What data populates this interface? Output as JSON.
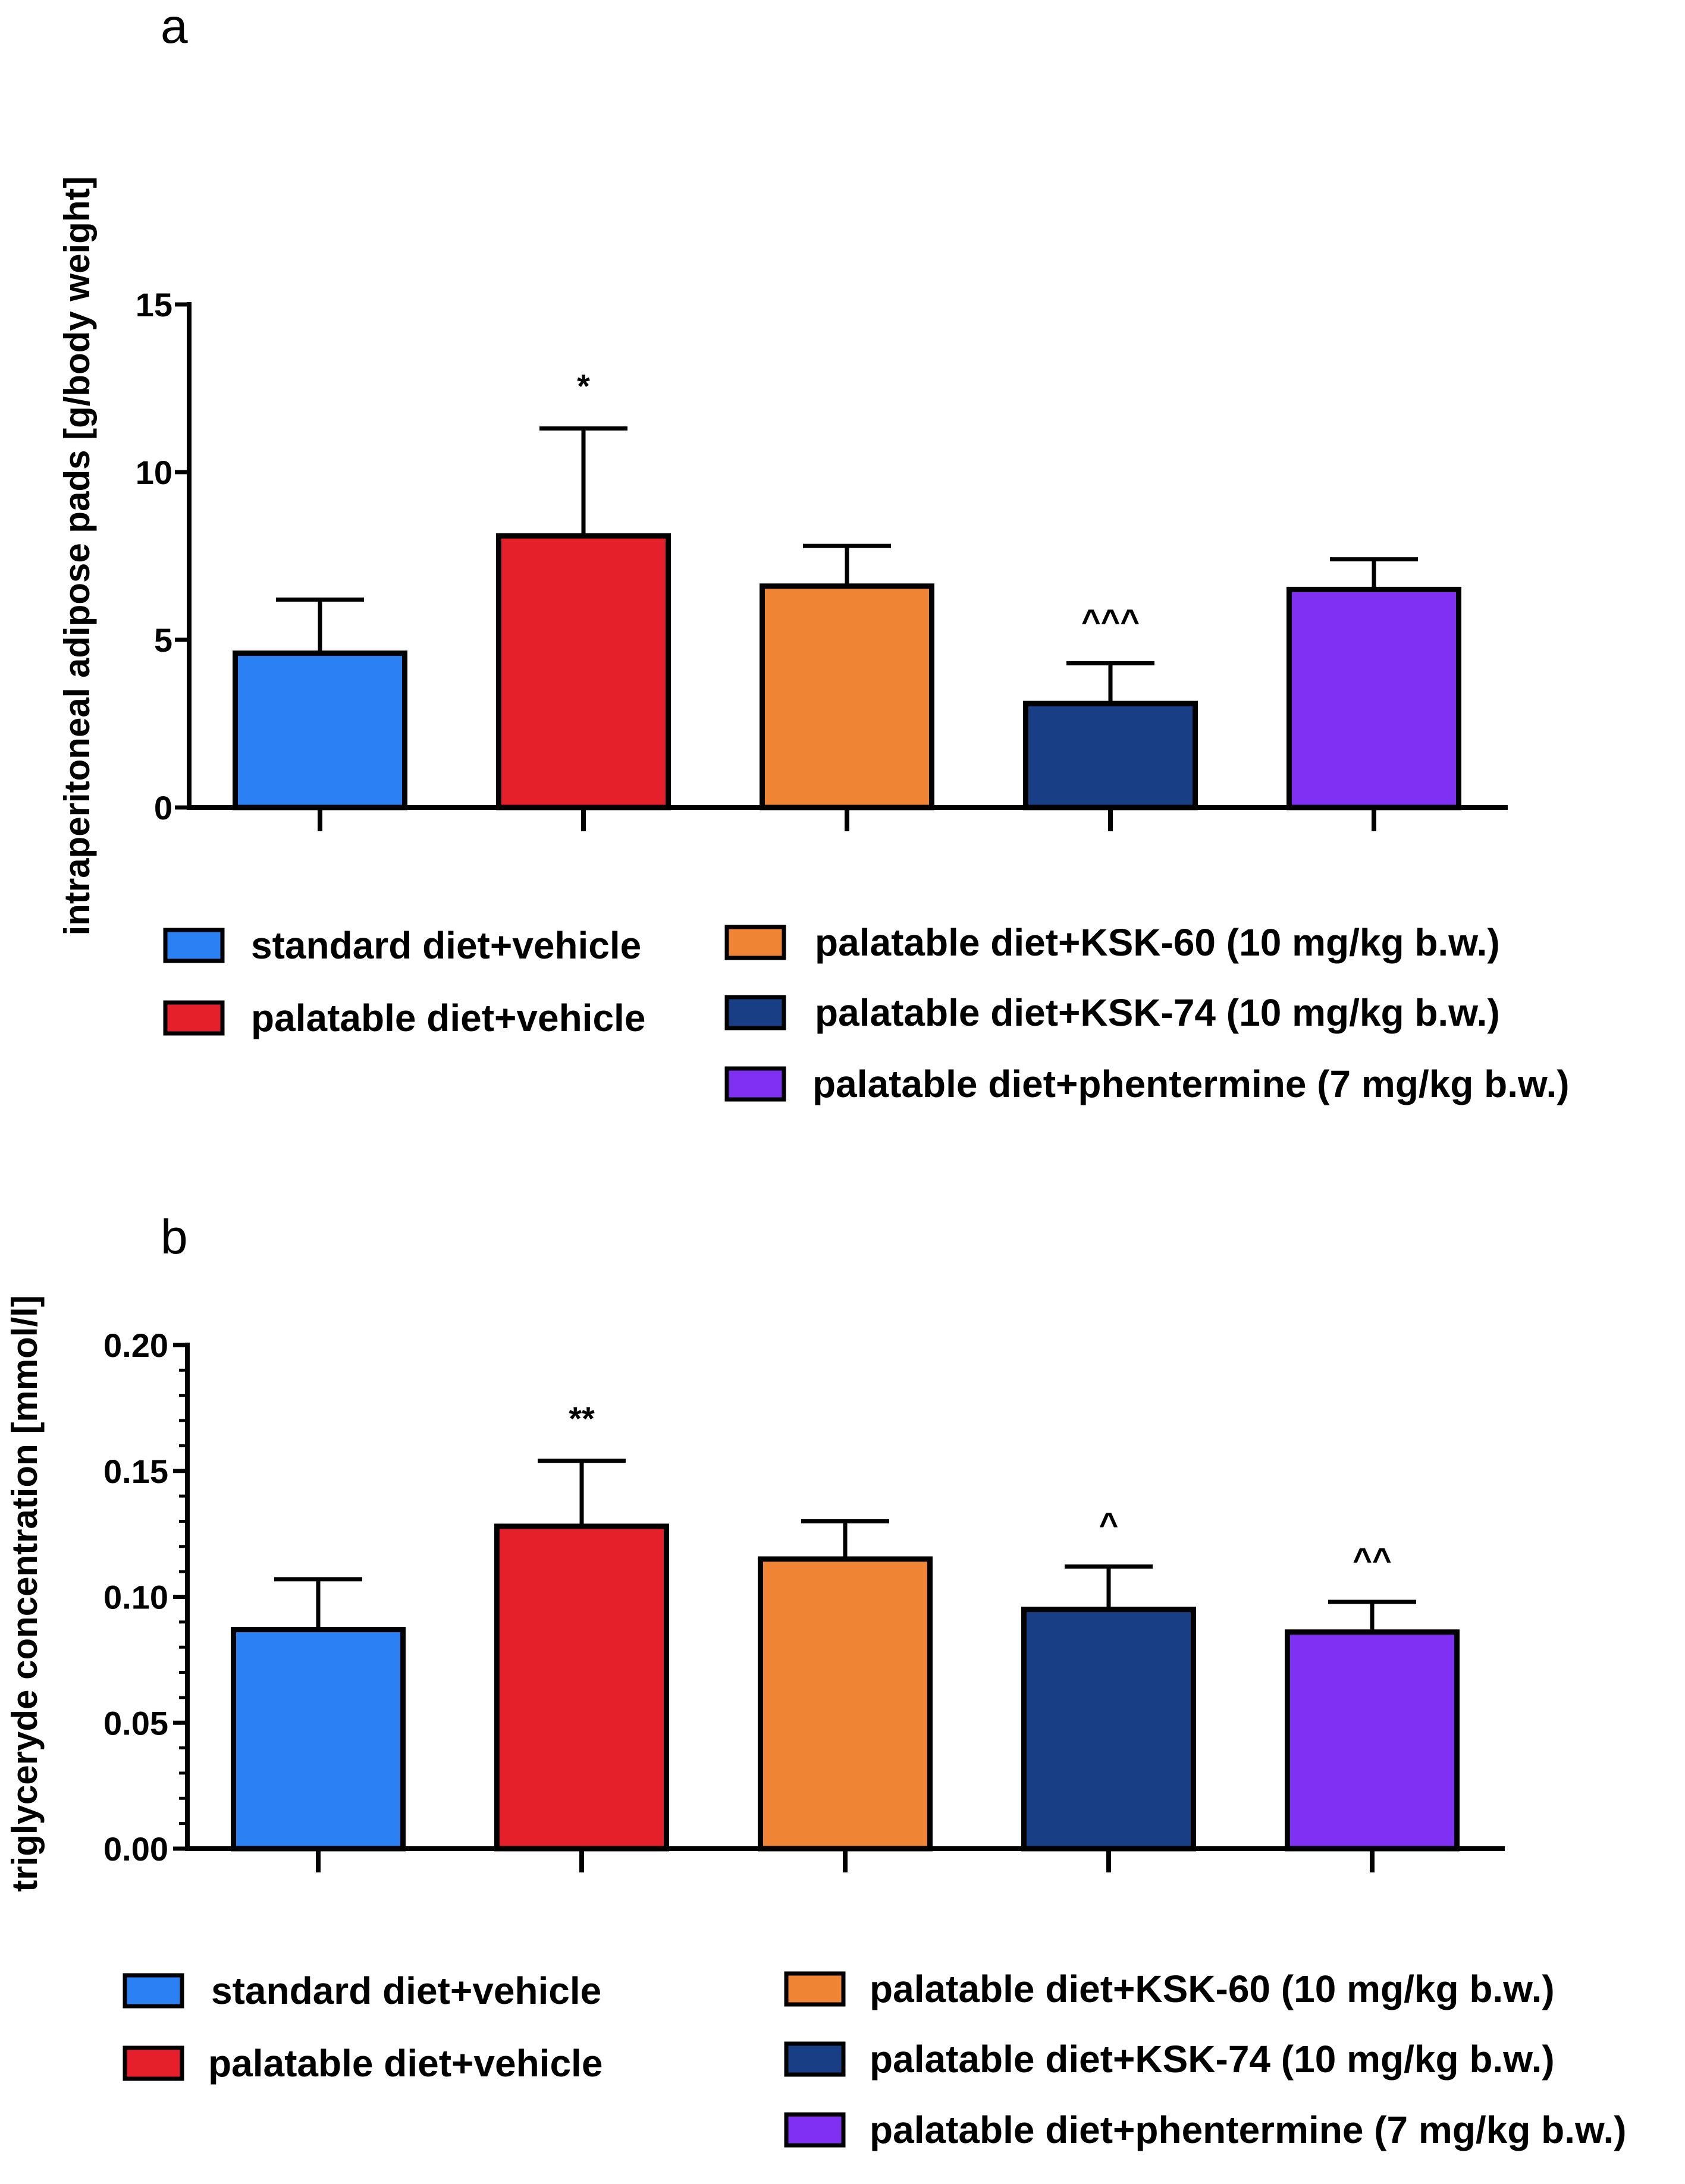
{
  "chart_data": [
    {
      "type": "bar",
      "panel_label": "a",
      "categories": [
        "standard diet+vehicle",
        "palatable diet+vehicle",
        "palatable diet+KSK-60 (10 mg/kg b.w.)",
        "palatable diet+KSK-74 (10 mg/kg b.w.)",
        "palatable diet+phentermine (7 mg/kg b.w.)"
      ],
      "values": [
        4.6,
        8.1,
        6.6,
        3.1,
        6.5
      ],
      "errors": [
        1.6,
        3.2,
        1.2,
        1.2,
        0.9
      ],
      "significance": [
        "",
        "*",
        "",
        "^^^",
        ""
      ],
      "colors": [
        "#2b80f4",
        "#e6202a",
        "#ee8434",
        "#183f85",
        "#8030f2"
      ],
      "ylabel": "intraperitoneal adipose pads [g/body weight]",
      "xlabel": "",
      "ylim": [
        0,
        15
      ],
      "yticks": [
        "0",
        "5",
        "10",
        "15"
      ],
      "legend_position": "bottom"
    },
    {
      "type": "bar",
      "panel_label": "b",
      "categories": [
        "standard diet+vehicle",
        "palatable diet+vehicle",
        "palatable diet+KSK-60 (10 mg/kg b.w.)",
        "palatable diet+KSK-74 (10 mg/kg b.w.)",
        "palatable diet+phentermine (7 mg/kg b.w.)"
      ],
      "values": [
        0.087,
        0.128,
        0.115,
        0.095,
        0.086
      ],
      "errors": [
        0.02,
        0.026,
        0.015,
        0.017,
        0.012
      ],
      "significance": [
        "",
        "**",
        "",
        "^",
        "^^"
      ],
      "colors": [
        "#2b80f4",
        "#e6202a",
        "#ee8434",
        "#183f85",
        "#8030f2"
      ],
      "ylabel": "triglyceryde concentration [mmol/l]",
      "xlabel": "",
      "ylim": [
        0,
        0.2
      ],
      "yticks": [
        "0.00",
        "0.05",
        "0.10",
        "0.15",
        "0.20"
      ],
      "legend_position": "bottom"
    }
  ]
}
